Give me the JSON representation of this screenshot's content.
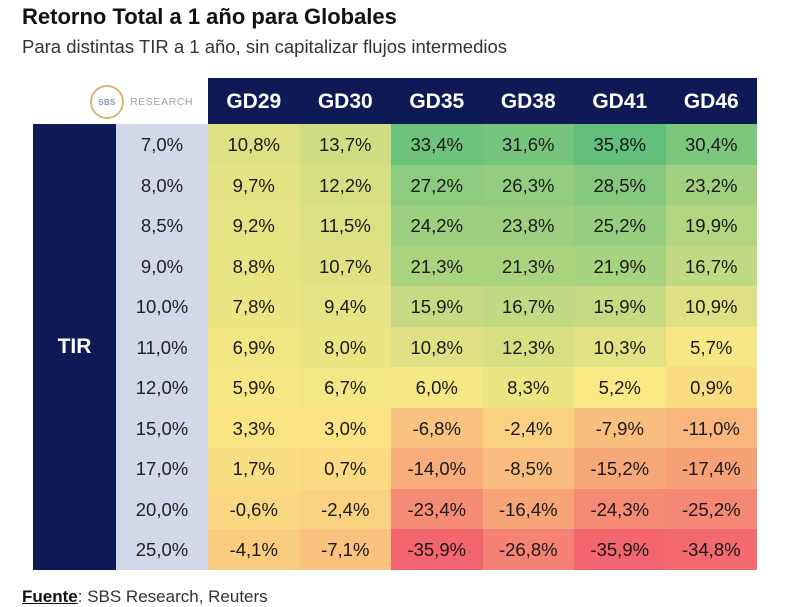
{
  "header": {
    "title": "Retorno Total a 1 año para Globales",
    "subtitle": "Para distintas TIR a 1 año, sin capitalizar flujos intermedios"
  },
  "logo": {
    "mark": "SBS",
    "text": "RESEARCH"
  },
  "source": {
    "label": "Fuente",
    "separator": ":",
    "text": " SBS Research, Reuters"
  },
  "chart_data": {
    "type": "heatmap",
    "title": "Retorno Total a 1 año para Globales",
    "subtitle": "Para distintas TIR a 1 año, sin capitalizar flujos intermedios",
    "row_axis_label": "TIR",
    "columns": [
      "GD29",
      "GD30",
      "GD35",
      "GD38",
      "GD41",
      "GD46"
    ],
    "rows": [
      "7,0%",
      "8,0%",
      "8,5%",
      "9,0%",
      "10,0%",
      "11,0%",
      "12,0%",
      "15,0%",
      "17,0%",
      "20,0%",
      "25,0%"
    ],
    "values": [
      [
        10.8,
        13.7,
        33.4,
        31.6,
        35.8,
        30.4
      ],
      [
        9.7,
        12.2,
        27.2,
        26.3,
        28.5,
        23.2
      ],
      [
        9.2,
        11.5,
        24.2,
        23.8,
        25.2,
        19.9
      ],
      [
        8.8,
        10.7,
        21.3,
        21.3,
        21.9,
        16.7
      ],
      [
        7.8,
        9.4,
        15.9,
        16.7,
        15.9,
        10.9
      ],
      [
        6.9,
        8.0,
        10.8,
        12.3,
        10.3,
        5.7
      ],
      [
        5.9,
        6.7,
        6.0,
        8.3,
        5.2,
        0.9
      ],
      [
        3.3,
        3.0,
        -6.8,
        -2.4,
        -7.9,
        -11.0
      ],
      [
        1.7,
        0.7,
        -14.0,
        -8.5,
        -15.2,
        -17.4
      ],
      [
        -0.6,
        -2.4,
        -23.4,
        -16.4,
        -24.3,
        -25.2
      ],
      [
        -4.1,
        -7.1,
        -35.9,
        -26.8,
        -35.9,
        -34.8
      ]
    ],
    "labels": [
      [
        "10,8%",
        "13,7%",
        "33,4%",
        "31,6%",
        "35,8%",
        "30,4%"
      ],
      [
        "9,7%",
        "12,2%",
        "27,2%",
        "26,3%",
        "28,5%",
        "23,2%"
      ],
      [
        "9,2%",
        "11,5%",
        "24,2%",
        "23,8%",
        "25,2%",
        "19,9%"
      ],
      [
        "8,8%",
        "10,7%",
        "21,3%",
        "21,3%",
        "21,9%",
        "16,7%"
      ],
      [
        "7,8%",
        "9,4%",
        "15,9%",
        "16,7%",
        "15,9%",
        "10,9%"
      ],
      [
        "6,9%",
        "8,0%",
        "10,8%",
        "12,3%",
        "10,3%",
        "5,7%"
      ],
      [
        "5,9%",
        "6,7%",
        "6,0%",
        "8,3%",
        "5,2%",
        "0,9%"
      ],
      [
        "3,3%",
        "3,0%",
        "-6,8%",
        "-2,4%",
        "-7,9%",
        "-11,0%"
      ],
      [
        "1,7%",
        "0,7%",
        "-14,0%",
        "-8,5%",
        "-15,2%",
        "-17,4%"
      ],
      [
        "-0,6%",
        "-2,4%",
        "-23,4%",
        "-16,4%",
        "-24,3%",
        "-25,2%"
      ],
      [
        "-4,1%",
        "-7,1%",
        "-35,9%",
        "-26,8%",
        "-35,9%",
        "-34,8%"
      ]
    ],
    "color_scale": {
      "low": "#f3656f",
      "mid": "#fbe985",
      "high": "#62bf7c",
      "min": -35.9,
      "mid_value": 5,
      "max": 35.8
    },
    "header_color": "#0e1a55",
    "row_label_color": "#d2d8ea"
  }
}
